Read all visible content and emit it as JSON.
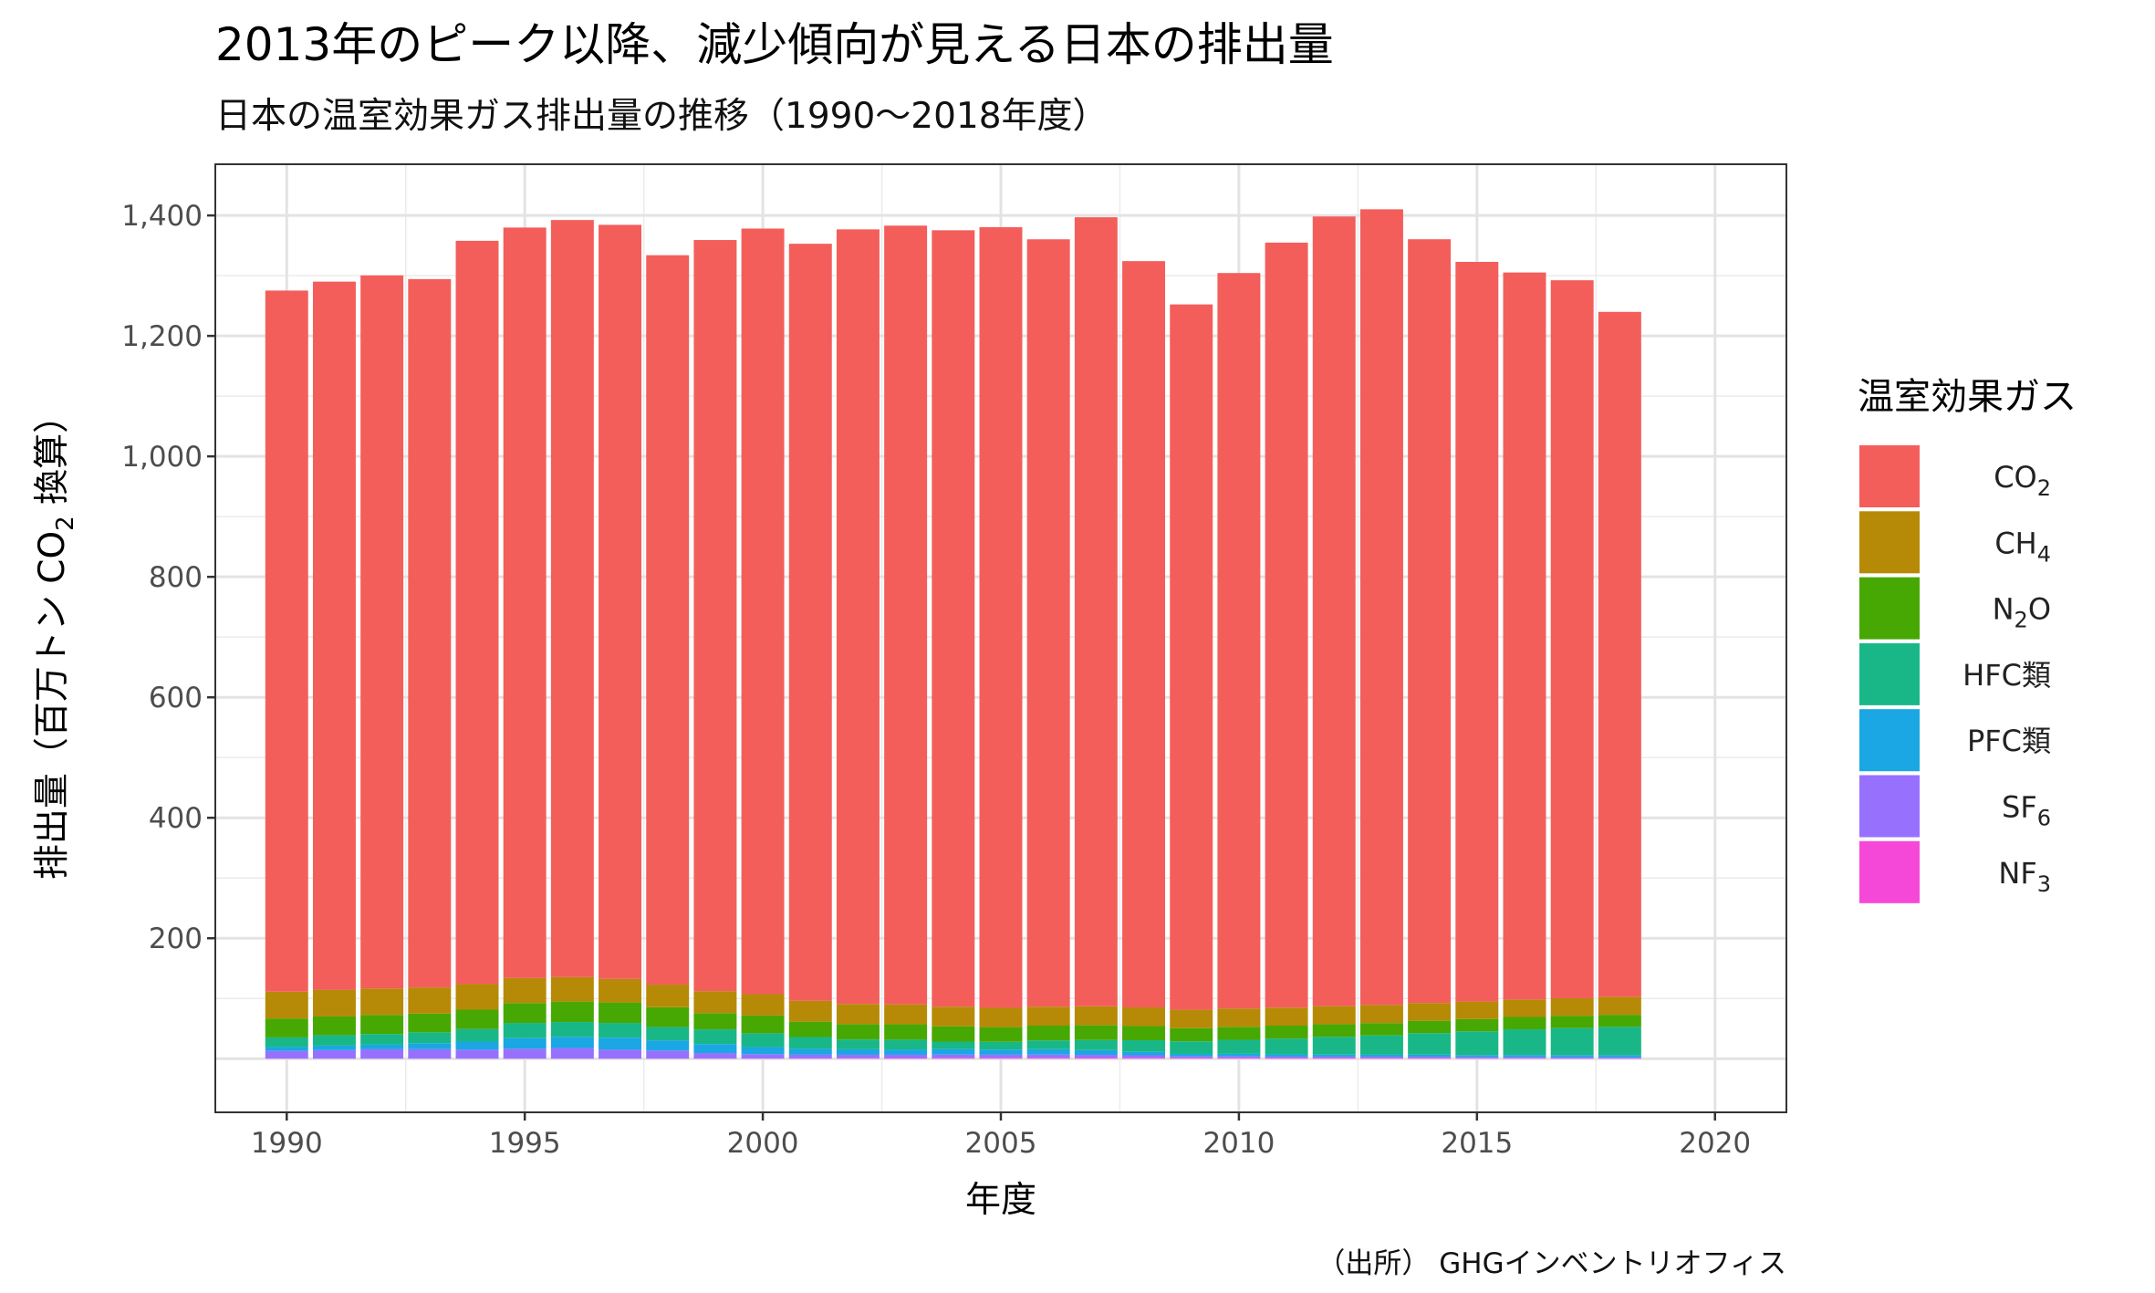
{
  "chart_data": {
    "type": "bar",
    "stacked": true,
    "title": "2013年のピーク以降、減少傾向が見える日本の排出量",
    "subtitle": "日本の温室効果ガス排出量の推移（1990〜2018年度）",
    "xlabel": "年度",
    "ylabel_parts": [
      "排出量（百万トン CO",
      "2",
      " 換算）"
    ],
    "caption": "（出所） GHGインベントリオフィス",
    "xlim": [
      1988.5,
      2021.5
    ],
    "ylim": [
      -89,
      1485
    ],
    "x_ticks": [
      1990,
      1995,
      2000,
      2005,
      2010,
      2015,
      2020
    ],
    "x_tick_labels": [
      "1990",
      "1995",
      "2000",
      "2005",
      "2010",
      "2015",
      "2020"
    ],
    "y_ticks": [
      200,
      400,
      600,
      800,
      1000,
      1200,
      1400
    ],
    "y_tick_labels": [
      "200",
      "400",
      "600",
      "800",
      "1,000",
      "1,200",
      "1,400"
    ],
    "grid": true,
    "legend_title": "温室効果ガス",
    "legend_position": "right",
    "x": [
      1990,
      1991,
      1992,
      1993,
      1994,
      1995,
      1996,
      1997,
      1998,
      1999,
      2000,
      2001,
      2002,
      2003,
      2004,
      2005,
      2006,
      2007,
      2008,
      2009,
      2010,
      2011,
      2012,
      2013,
      2014,
      2015,
      2016,
      2017,
      2018
    ],
    "series": [
      {
        "name": "NF3",
        "label_main": "NF",
        "label_sub": "3",
        "color": "#F648D8",
        "values": [
          0.03,
          0.03,
          0.03,
          0.03,
          0.03,
          0.2,
          0.2,
          0.2,
          0.2,
          0.3,
          0.3,
          0.5,
          0.8,
          1.1,
          1.5,
          1.5,
          1.6,
          1.7,
          1.5,
          1.5,
          1.5,
          1.3,
          1.3,
          1.2,
          1.2,
          0.6,
          0.6,
          0.4,
          0.3
        ]
      },
      {
        "name": "SF6",
        "label_main": "SF",
        "label_sub": "6",
        "color": "#9771FD",
        "values": [
          12.9,
          14.2,
          15.6,
          15.7,
          15,
          16.4,
          17.5,
          14.8,
          13.4,
          9.1,
          7.2,
          6.1,
          5.7,
          5.4,
          5.3,
          5.1,
          5.2,
          4.7,
          4.2,
          2.4,
          2.4,
          2.2,
          2.2,
          2.1,
          2.1,
          2.2,
          2.2,
          2.1,
          2.1
        ]
      },
      {
        "name": "PFC類",
        "label_main": "PFC類",
        "label_sub": "",
        "color": "#1AA7E3",
        "values": [
          6.5,
          7.5,
          7.6,
          10,
          13.4,
          17.6,
          18.6,
          20,
          16.9,
          14.9,
          11.9,
          9.9,
          9.2,
          8.9,
          9.2,
          8.6,
          9,
          7.9,
          5.7,
          4,
          4.2,
          3.8,
          3.4,
          3.3,
          3.4,
          3.3,
          3.4,
          3.5,
          3.5
        ]
      },
      {
        "name": "HFC類",
        "label_main": "HFC類",
        "label_sub": "",
        "color": "#19B787",
        "values": [
          15.9,
          17.4,
          17.8,
          18.1,
          21,
          25.2,
          24.6,
          24.4,
          22,
          24.4,
          22.8,
          19.5,
          16.2,
          16.2,
          12.4,
          12.8,
          14.6,
          16.7,
          19.3,
          20.9,
          23.3,
          26.1,
          29.4,
          32.1,
          35.8,
          39.3,
          42.6,
          44.9,
          47
        ]
      },
      {
        "name": "N2O",
        "label_main": "N",
        "label_sub": "2",
        "label_tail": "O",
        "color": "#47A804",
        "values": [
          31.5,
          31,
          31.5,
          31,
          32,
          33,
          34,
          34,
          33,
          27,
          29.5,
          25.5,
          25.5,
          25.5,
          25.5,
          24.5,
          24.5,
          24.5,
          23.5,
          22,
          21.5,
          21.5,
          21,
          20.5,
          20.5,
          20.5,
          20.5,
          20.5,
          20
        ]
      },
      {
        "name": "CH4",
        "label_main": "CH",
        "label_sub": "4",
        "color": "#B68A06",
        "values": [
          44.5,
          44,
          44,
          43.5,
          42.5,
          41.5,
          40.5,
          39,
          37.5,
          36.5,
          35.5,
          34.5,
          33.5,
          33,
          32.5,
          32,
          31.5,
          31.5,
          31,
          30.5,
          30.5,
          30,
          30,
          30,
          29.5,
          29,
          29,
          29,
          30
        ]
      },
      {
        "name": "CO2",
        "label_main": "CO",
        "label_sub": "2",
        "color": "#F35E5B",
        "values": [
          1164,
          1176,
          1184,
          1176,
          1234,
          1246,
          1257,
          1252,
          1211,
          1247,
          1271,
          1257,
          1286,
          1293,
          1289,
          1296,
          1274,
          1310,
          1239,
          1171,
          1221,
          1270,
          1311,
          1321,
          1268,
          1228,
          1207,
          1192,
          1137
        ]
      }
    ]
  }
}
